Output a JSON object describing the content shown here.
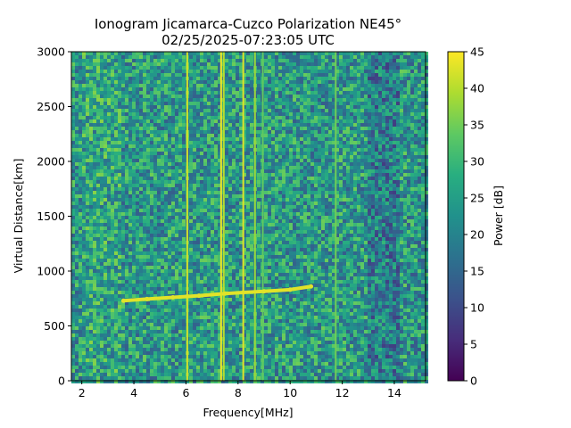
{
  "chart_data": {
    "type": "heatmap",
    "title": "Ionogram Jicamarca-Cuzco Polarization NE45°",
    "subtitle": "02/25/2025-07:23:05 UTC",
    "xlabel": "Frequency[MHz]",
    "ylabel": "Virtual Distance[km]",
    "xlim": [
      1.6,
      15.2
    ],
    "ylim": [
      0,
      3000
    ],
    "xticks": [
      2,
      4,
      6,
      8,
      10,
      12,
      14
    ],
    "yticks": [
      0,
      500,
      1000,
      1500,
      2000,
      2500,
      3000
    ],
    "colorbar": {
      "label": "Power [dB]",
      "range": [
        0,
        45
      ],
      "ticks": [
        0,
        5,
        10,
        15,
        20,
        25,
        30,
        35,
        40,
        45
      ],
      "colormap": "viridis"
    },
    "background_power_db": 24,
    "interference_lines": [
      {
        "freq_mhz": 6.05,
        "power_db": 42
      },
      {
        "freq_mhz": 7.35,
        "power_db": 44
      },
      {
        "freq_mhz": 7.45,
        "power_db": 40
      },
      {
        "freq_mhz": 8.2,
        "power_db": 43
      },
      {
        "freq_mhz": 8.65,
        "power_db": 38
      },
      {
        "freq_mhz": 8.95,
        "power_db": 34
      },
      {
        "freq_mhz": 11.75,
        "power_db": 35
      }
    ],
    "trace": {
      "x": [
        3.6,
        4.5,
        5.5,
        6.5,
        7.5,
        8.2,
        9.0,
        10.0,
        10.8
      ],
      "y": [
        730,
        745,
        760,
        775,
        795,
        805,
        815,
        830,
        860
      ],
      "power_db": 43
    }
  }
}
